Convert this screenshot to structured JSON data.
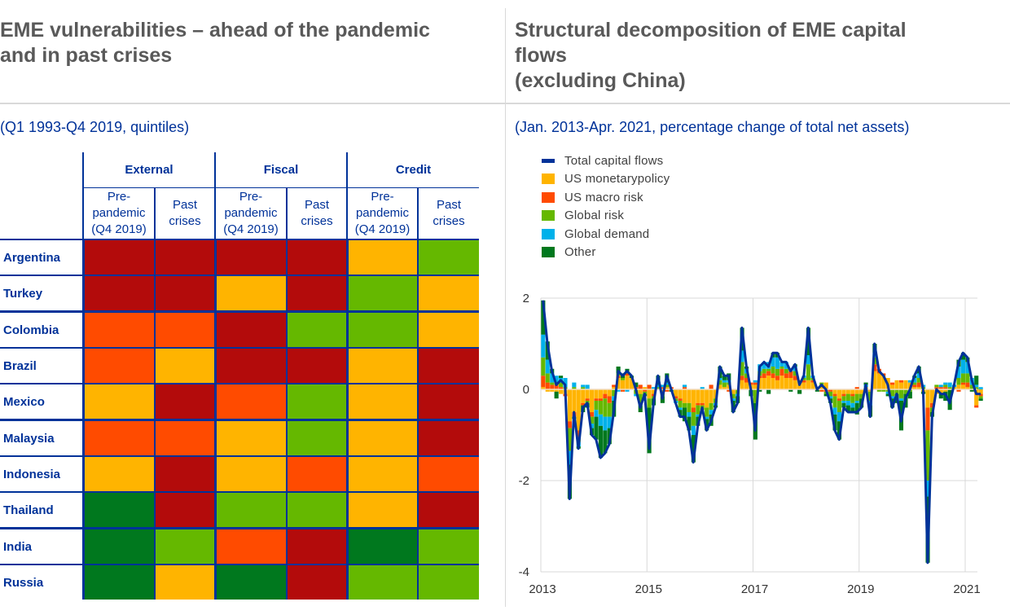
{
  "left_panel": {
    "title_line1": "EME vulnerabilities – ahead of the pandemic",
    "title_line2": "and in past crises",
    "subtitle": "(Q1 1993-Q4 2019, quintiles)"
  },
  "right_panel": {
    "title_line1": "Structural decomposition of EME capital",
    "title_line2": "flows",
    "title_line3": "(excluding China)",
    "subtitle": "(Jan. 2013-Apr. 2021, percentage change of total net assets)"
  },
  "colors": {
    "q5": "#b30b0b",
    "q4": "#ff4b00",
    "q3": "#ffb400",
    "q2": "#65b800",
    "q1": "#00781e",
    "total_line": "#003299",
    "us_monetary": "#ffb400",
    "us_macro": "#ff4b00",
    "global_risk": "#65b800",
    "global_demand": "#00b1ea",
    "other": "#00781e"
  },
  "table": {
    "groups": [
      "External",
      "Fiscal",
      "Credit"
    ],
    "subheaders": [
      [
        "Pre-",
        "pandemic",
        "(Q4 2019)"
      ],
      [
        "Past",
        "crises"
      ],
      [
        "Pre-",
        "pandemic",
        "(Q4 2019)"
      ],
      [
        "Past",
        "crises"
      ],
      [
        "Pre-",
        "pandemic",
        "(Q4 2019)"
      ],
      [
        "Past",
        "crises"
      ]
    ],
    "rows": [
      {
        "country": "Argentina",
        "quintiles": [
          5,
          5,
          5,
          5,
          3,
          2
        ]
      },
      {
        "country": "Turkey",
        "quintiles": [
          5,
          5,
          3,
          5,
          2,
          3
        ]
      },
      {
        "country": "Colombia",
        "quintiles": [
          4,
          4,
          5,
          2,
          2,
          3
        ]
      },
      {
        "country": "Brazil",
        "quintiles": [
          4,
          3,
          5,
          5,
          3,
          5
        ]
      },
      {
        "country": "Mexico",
        "quintiles": [
          3,
          5,
          4,
          2,
          3,
          5
        ]
      },
      {
        "country": "Malaysia",
        "quintiles": [
          4,
          4,
          3,
          2,
          3,
          5
        ]
      },
      {
        "country": "Indonesia",
        "quintiles": [
          3,
          5,
          3,
          4,
          3,
          4
        ]
      },
      {
        "country": "Thailand",
        "quintiles": [
          1,
          5,
          2,
          2,
          3,
          5
        ]
      },
      {
        "country": "India",
        "quintiles": [
          1,
          2,
          4,
          5,
          1,
          2
        ]
      },
      {
        "country": "Russia",
        "quintiles": [
          1,
          3,
          1,
          5,
          2,
          2
        ]
      }
    ]
  },
  "chart_data": {
    "type": "bar",
    "stacked": true,
    "title": "Structural decomposition of EME capital flows (excluding China)",
    "subtitle": "(Jan. 2013-Apr. 2021, percentage change of total net assets)",
    "xlabel": "",
    "ylabel": "",
    "ylim": [
      -4,
      2
    ],
    "yticks": [
      "2",
      "0",
      "-2",
      "-4"
    ],
    "ytick_values": [
      2,
      0,
      -2,
      -4
    ],
    "xticks": [
      "2013",
      "2015",
      "2017",
      "2019",
      "2021"
    ],
    "x_start": "2013-01",
    "x_end": "2021-04",
    "frequency": "monthly",
    "grid": true,
    "legend_position": "top-left",
    "legend": [
      "Total capital flows",
      "US monetarypolicy",
      "US macro risk",
      "Global risk",
      "Global demand",
      "Other"
    ],
    "total": [
      1.95,
      1.0,
      0.4,
      0.1,
      0.2,
      0.1,
      -2.4,
      -0.5,
      -1.3,
      -0.4,
      -0.3,
      -1.0,
      -1.1,
      -1.5,
      -1.4,
      -1.2,
      -0.5,
      0.4,
      0.3,
      0.4,
      0.3,
      0.0,
      -0.4,
      -0.1,
      -1.3,
      -0.3,
      0.3,
      -0.2,
      0.3,
      0.0,
      -0.3,
      -0.6,
      -0.6,
      -0.9,
      -1.6,
      -0.8,
      -0.4,
      -0.9,
      -0.7,
      -0.4,
      0.5,
      0.3,
      0.3,
      -0.5,
      -0.3,
      1.35,
      0.5,
      0.0,
      -0.9,
      0.5,
      0.6,
      0.5,
      0.8,
      0.8,
      0.6,
      0.6,
      0.4,
      0.55,
      0.1,
      0.3,
      1.35,
      0.3,
      0.0,
      0.1,
      0.0,
      -0.3,
      -0.9,
      -1.1,
      -0.4,
      -0.5,
      -0.5,
      -0.5,
      -0.4,
      0.1,
      -0.6,
      1.0,
      0.4,
      0.3,
      0.1,
      -0.4,
      -0.1,
      -0.7,
      -0.2,
      0.0,
      0.3,
      0.5,
      0.0,
      -3.8,
      -0.6,
      0.0,
      -0.1,
      -0.1,
      -0.3,
      0.1,
      0.6,
      0.8,
      0.7,
      0.2,
      -0.1,
      -0.1
    ],
    "series": [
      {
        "name": "US monetarypolicy",
        "values": [
          0.05,
          -0.05,
          -0.05,
          -0.05,
          -0.1,
          -0.1,
          -0.7,
          -0.5,
          -0.9,
          -0.3,
          -0.2,
          -0.5,
          -0.2,
          -0.2,
          -0.1,
          -0.15,
          0.05,
          0.25,
          0.2,
          0.3,
          0.25,
          0.0,
          -0.1,
          0.05,
          -0.2,
          -0.1,
          0.0,
          -0.1,
          0.05,
          0.0,
          -0.15,
          -0.2,
          -0.3,
          -0.3,
          -0.4,
          -0.3,
          -0.3,
          -0.4,
          -0.3,
          -0.2,
          0.1,
          0.05,
          0.1,
          -0.1,
          0.0,
          0.2,
          0.15,
          0.1,
          0.1,
          0.25,
          0.25,
          0.3,
          0.25,
          0.2,
          0.3,
          0.25,
          0.25,
          0.2,
          0.2,
          0.15,
          0.2,
          0.15,
          0.05,
          0.1,
          0.15,
          0.0,
          -0.1,
          -0.2,
          -0.1,
          -0.1,
          -0.1,
          -0.1,
          -0.1,
          0.05,
          -0.05,
          0.4,
          0.35,
          0.3,
          0.25,
          0.1,
          0.2,
          0.15,
          0.2,
          0.15,
          0.05,
          0.05,
          -0.05,
          -0.4,
          -0.3,
          -0.1,
          -0.1,
          -0.05,
          0.0,
          0.05,
          0.1,
          0.1,
          0.05,
          0.0,
          -0.35,
          -0.1
        ]
      },
      {
        "name": "US macro risk",
        "values": [
          0.25,
          0.15,
          0.1,
          0.1,
          0.05,
          -0.05,
          -0.15,
          -0.1,
          -0.15,
          -0.05,
          -0.05,
          -0.1,
          -0.05,
          -0.05,
          -0.1,
          -0.15,
          0.05,
          0.05,
          -0.05,
          0.05,
          0.0,
          0.05,
          0.1,
          -0.05,
          0.1,
          -0.05,
          0.0,
          0.05,
          -0.05,
          0.05,
          -0.05,
          -0.05,
          0.05,
          0.0,
          -0.1,
          -0.05,
          -0.05,
          0.0,
          0.1,
          0.0,
          0.0,
          0.0,
          -0.05,
          0.0,
          0.0,
          0.1,
          0.1,
          0.05,
          0.05,
          0.05,
          0.1,
          0.1,
          0.1,
          0.1,
          0.15,
          0.1,
          0.15,
          0.1,
          0.0,
          0.05,
          0.0,
          0.05,
          0.0,
          -0.05,
          -0.05,
          -0.05,
          -0.05,
          -0.05,
          -0.05,
          0.0,
          -0.05,
          0.05,
          0.0,
          -0.05,
          0.0,
          0.15,
          0.1,
          0.05,
          0.0,
          0.05,
          0.0,
          0.05,
          0.0,
          0.0,
          0.05,
          0.1,
          0.0,
          -0.5,
          -0.1,
          0.05,
          0.05,
          0.05,
          0.0,
          0.0,
          -0.05,
          0.05,
          0.1,
          0.0,
          -0.05,
          -0.05
        ]
      },
      {
        "name": "Global risk",
        "values": [
          0.4,
          0.2,
          0.05,
          0.05,
          0.1,
          0.05,
          -0.5,
          0.05,
          -0.1,
          0.05,
          -0.05,
          -0.15,
          -0.2,
          -0.3,
          -0.4,
          -0.3,
          -0.15,
          0.05,
          0.05,
          0.05,
          0.0,
          -0.1,
          -0.2,
          -0.05,
          -0.2,
          -0.05,
          0.05,
          -0.05,
          0.05,
          0.0,
          -0.05,
          -0.15,
          -0.1,
          -0.2,
          -0.3,
          -0.2,
          -0.1,
          -0.2,
          -0.15,
          -0.1,
          0.1,
          0.1,
          0.05,
          -0.1,
          -0.1,
          0.3,
          0.1,
          0.0,
          -0.3,
          0.1,
          0.1,
          0.05,
          0.15,
          0.15,
          0.05,
          0.1,
          0.0,
          0.1,
          0.0,
          0.05,
          0.35,
          0.05,
          0.0,
          0.05,
          -0.05,
          -0.1,
          -0.25,
          -0.25,
          -0.1,
          -0.15,
          -0.15,
          -0.15,
          -0.1,
          0.0,
          -0.2,
          0.15,
          -0.05,
          -0.05,
          -0.05,
          -0.15,
          -0.1,
          -0.2,
          -0.1,
          -0.05,
          0.05,
          0.1,
          0.05,
          -1.1,
          -0.1,
          0.05,
          0.0,
          0.05,
          0.05,
          0.0,
          0.15,
          0.2,
          0.2,
          0.1,
          0.05,
          -0.05
        ]
      },
      {
        "name": "Global demand",
        "values": [
          0.5,
          0.3,
          0.2,
          0.15,
          0.1,
          0.2,
          -0.3,
          0.1,
          -0.1,
          0.05,
          0.1,
          -0.1,
          -0.15,
          -0.25,
          -0.3,
          -0.25,
          -0.1,
          -0.05,
          0.0,
          -0.05,
          0.0,
          -0.05,
          -0.05,
          0.0,
          0.0,
          0.05,
          0.05,
          0.05,
          0.05,
          0.0,
          -0.05,
          -0.05,
          0.05,
          -0.1,
          -0.2,
          -0.05,
          0.05,
          -0.05,
          -0.1,
          -0.05,
          0.05,
          0.05,
          0.05,
          -0.05,
          -0.05,
          0.25,
          0.1,
          0.0,
          0.05,
          0.15,
          0.15,
          0.15,
          0.2,
          0.25,
          0.1,
          0.15,
          0.05,
          0.1,
          0.0,
          0.05,
          0.2,
          0.05,
          0.0,
          0.0,
          0.0,
          -0.05,
          -0.15,
          -0.2,
          -0.05,
          -0.1,
          -0.1,
          -0.05,
          0.0,
          0.05,
          -0.1,
          0.1,
          0.0,
          0.0,
          -0.05,
          -0.05,
          0.0,
          -0.05,
          0.0,
          0.05,
          0.1,
          0.1,
          0.05,
          -0.35,
          0.0,
          0.0,
          0.05,
          0.05,
          0.1,
          0.05,
          0.25,
          0.3,
          0.25,
          0.15,
          0.05,
          0.05
        ]
      },
      {
        "name": "Other",
        "values": [
          0.75,
          0.4,
          0.1,
          -0.15,
          0.05,
          0.0,
          -0.75,
          -0.05,
          -0.05,
          -0.15,
          -0.1,
          -0.15,
          -0.5,
          -0.7,
          -0.5,
          -0.35,
          -0.35,
          0.15,
          0.1,
          0.05,
          0.05,
          0.1,
          -0.15,
          -0.05,
          -1.0,
          -0.15,
          0.2,
          -0.15,
          0.2,
          -0.05,
          0.0,
          -0.15,
          -0.3,
          -0.3,
          -0.6,
          -0.2,
          0.0,
          -0.25,
          -0.25,
          -0.05,
          0.25,
          0.1,
          0.15,
          -0.25,
          -0.15,
          0.5,
          0.05,
          -0.15,
          -0.8,
          -0.05,
          0.0,
          -0.1,
          0.1,
          0.1,
          0.0,
          0.0,
          -0.05,
          0.05,
          -0.1,
          0.0,
          0.6,
          0.0,
          -0.05,
          0.0,
          -0.05,
          -0.1,
          -0.35,
          -0.4,
          -0.1,
          -0.15,
          -0.1,
          -0.25,
          -0.2,
          0.05,
          -0.25,
          0.2,
          0.0,
          0.0,
          -0.05,
          -0.2,
          -0.2,
          -0.65,
          -0.3,
          -0.15,
          0.05,
          0.15,
          -0.05,
          -1.45,
          -0.1,
          0.0,
          -0.1,
          -0.2,
          -0.45,
          0.0,
          0.15,
          0.15,
          0.1,
          -0.05,
          0.2,
          -0.05
        ]
      }
    ]
  }
}
